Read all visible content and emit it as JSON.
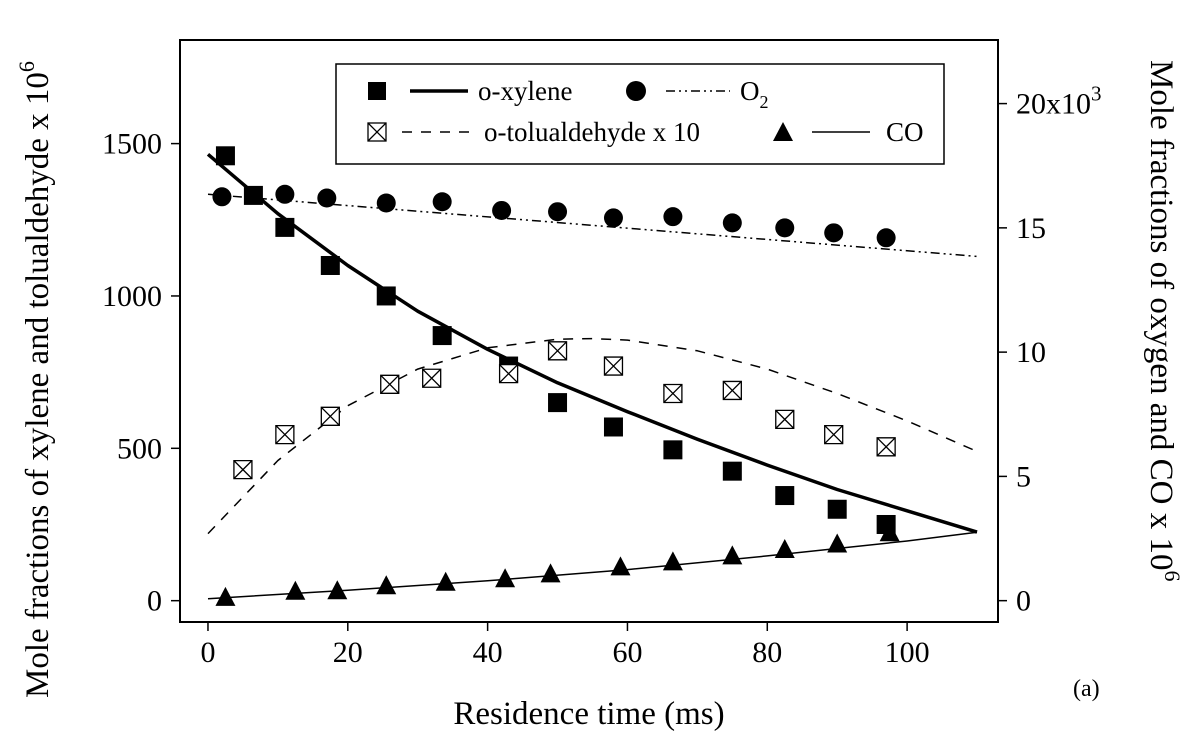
{
  "chart_data": {
    "type": "scatter",
    "panel_label": "(a)",
    "xlabel": "Residence time (ms)",
    "ylabel_left": "Mole fractions of xylene and tolualdehyde x 10",
    "ylabel_left_exp": "6",
    "ylabel_right": "Mole fractions of oxygen and CO x 10",
    "ylabel_right_exp": "6",
    "xlim": [
      -4,
      113
    ],
    "ylim_left": [
      -70,
      1840
    ],
    "ylim_right": [
      -858.67,
      22558.67
    ],
    "x_ticks": [
      "0",
      "20",
      "40",
      "60",
      "80",
      "100"
    ],
    "x_tick_values": [
      0,
      20,
      40,
      60,
      80,
      100
    ],
    "y_left_ticks": [
      "0",
      "500",
      "1000",
      "1500"
    ],
    "y_left_tick_values": [
      0,
      500,
      1000,
      1500
    ],
    "y_right_ticks": [
      "0",
      "5",
      "10",
      "15"
    ],
    "y_right_tick_values": [
      0,
      5000,
      10000,
      15000
    ],
    "y_right_top_tick": "20x10",
    "y_right_top_tick_exp": "3",
    "y_right_top_tick_value": 20000,
    "grid": false,
    "legend_position": "top",
    "series": [
      {
        "name": "o-xylene",
        "axis": "left",
        "marker": "square",
        "x": [
          2.5,
          6.5,
          11,
          17.5,
          25.5,
          33.5,
          43,
          50,
          58,
          66.5,
          75,
          82.5,
          90,
          97
        ],
        "y": [
          1460,
          1330,
          1225,
          1100,
          1000,
          870,
          770,
          650,
          570,
          495,
          425,
          345,
          300,
          250
        ]
      },
      {
        "name": "o-xylene",
        "axis": "left",
        "kind": "line",
        "style": "solid-thick",
        "x": [
          0,
          10,
          20,
          30,
          40,
          50,
          60,
          70,
          80,
          90,
          100,
          110
        ],
        "y": [
          1465,
          1270,
          1100,
          950,
          825,
          715,
          620,
          530,
          445,
          365,
          295,
          225
        ]
      },
      {
        "name": "O2",
        "axis": "right",
        "marker": "circle",
        "x": [
          2,
          11,
          17,
          25.5,
          33.5,
          42,
          50,
          58,
          66.5,
          75,
          82.5,
          89.5,
          97
        ],
        "y": [
          16250,
          16350,
          16200,
          16000,
          16050,
          15700,
          15650,
          15400,
          15450,
          15200,
          15000,
          14800,
          14600
        ]
      },
      {
        "name": "O2",
        "axis": "right",
        "kind": "line",
        "style": "dash-dot-dot",
        "x": [
          0,
          110
        ],
        "y": [
          16350,
          13850
        ]
      },
      {
        "name": "o-tolualdehyde x 10",
        "axis": "left",
        "marker": "bowtie",
        "x": [
          5,
          11,
          17.5,
          26,
          32,
          43,
          50,
          58,
          66.5,
          75,
          82.5,
          89.5,
          97
        ],
        "y": [
          430,
          545,
          605,
          710,
          730,
          745,
          820,
          770,
          680,
          690,
          595,
          545,
          505
        ]
      },
      {
        "name": "o-tolualdehyde x 10",
        "axis": "left",
        "kind": "line",
        "style": "dashed",
        "x": [
          0,
          10,
          20,
          30,
          40,
          50,
          55,
          60,
          70,
          80,
          90,
          100,
          110
        ],
        "y": [
          220,
          460,
          640,
          760,
          830,
          858,
          860,
          855,
          820,
          760,
          680,
          590,
          490
        ]
      },
      {
        "name": "CO",
        "axis": "right",
        "marker": "triangle",
        "x": [
          2.5,
          12.5,
          18.5,
          25.5,
          34,
          42.5,
          49,
          59,
          66.5,
          75,
          82.5,
          90,
          97.5
        ],
        "y": [
          150,
          400,
          420,
          620,
          760,
          900,
          1100,
          1380,
          1580,
          1820,
          2080,
          2300,
          2750
        ]
      },
      {
        "name": "CO",
        "axis": "right",
        "kind": "line",
        "style": "solid",
        "x": [
          0,
          20,
          40,
          60,
          80,
          100,
          110
        ],
        "y": [
          80,
          420,
          800,
          1250,
          1800,
          2400,
          2750
        ]
      }
    ]
  },
  "legend": {
    "items": [
      {
        "label": "o-xylene",
        "marker": "square",
        "line": "solid-thick"
      },
      {
        "label": "O",
        "sub": "2",
        "marker": "circle",
        "line": "dash-dot-dot"
      },
      {
        "label": "o-tolualdehyde x 10",
        "marker": "bowtie",
        "line": "dashed"
      },
      {
        "label": "CO",
        "marker": "triangle",
        "line": "solid"
      }
    ]
  }
}
